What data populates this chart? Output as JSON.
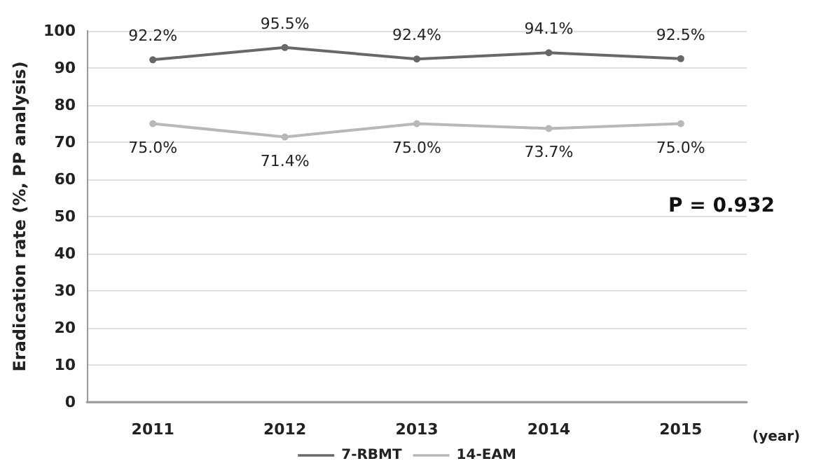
{
  "chart_data": {
    "type": "line",
    "xlabel": "(year)",
    "ylabel": "Eradication rate (%, PP analysis)",
    "categories": [
      "2011",
      "2012",
      "2013",
      "2014",
      "2015"
    ],
    "series": [
      {
        "name": "7-RBMT",
        "color": "#686868",
        "values": [
          92.2,
          95.5,
          92.4,
          94.1,
          92.5
        ],
        "value_labels": [
          "92.2%",
          "95.5%",
          "92.4%",
          "94.1%",
          "92.5%"
        ]
      },
      {
        "name": "14-EAM",
        "color": "#b8b8b8",
        "values": [
          75.0,
          71.4,
          75.0,
          73.7,
          75.0
        ],
        "value_labels": [
          "75.0%",
          "71.4%",
          "75.0%",
          "73.7%",
          "75.0%"
        ]
      }
    ],
    "ylim": [
      0,
      100
    ],
    "yticks": [
      0,
      10,
      20,
      30,
      40,
      50,
      60,
      70,
      80,
      90,
      100
    ],
    "grid": "y",
    "legend": "bottom",
    "marker": "circle",
    "line_style": "solid",
    "annotations": [
      "P = 0.932"
    ]
  }
}
